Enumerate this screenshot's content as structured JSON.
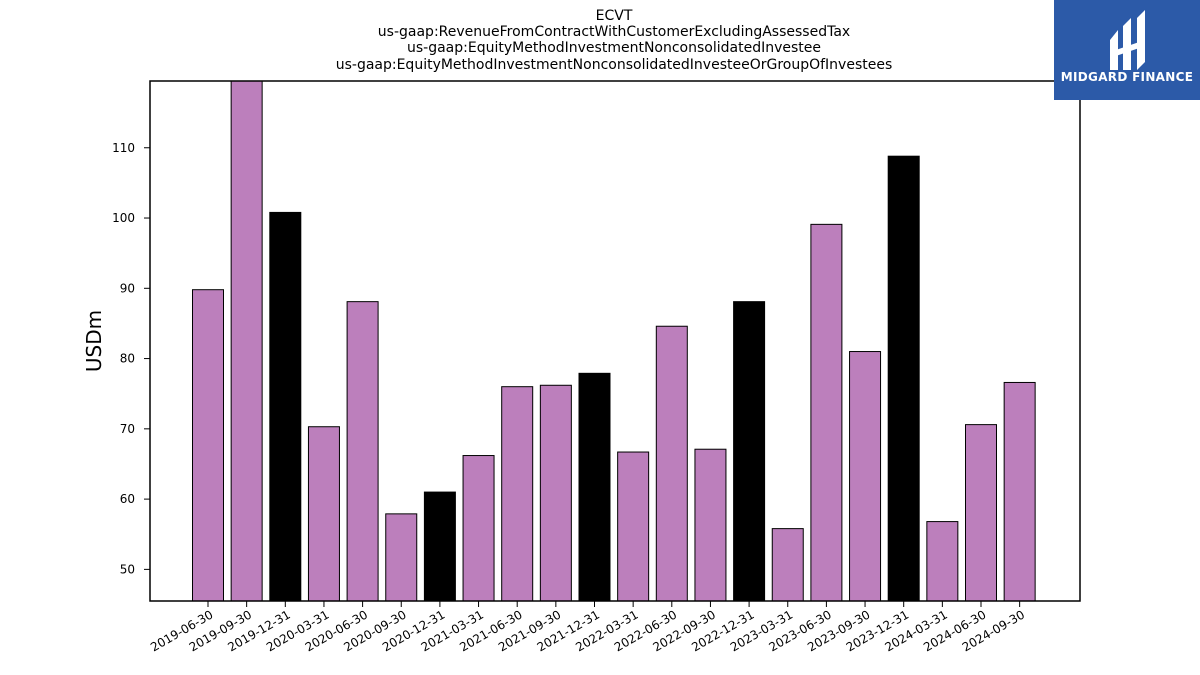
{
  "chart_data": {
    "type": "bar",
    "title_lines": [
      "ECVT",
      "us-gaap:RevenueFromContractWithCustomerExcludingAssessedTax",
      "us-gaap:EquityMethodInvestmentNonconsolidatedInvestee",
      "us-gaap:EquityMethodInvestmentNonconsolidatedInvesteeOrGroupOfInvestees"
    ],
    "ylabel": "USDm",
    "xlabel": "",
    "ylim": [
      45.5,
      119.5
    ],
    "yticks": [
      50,
      60,
      70,
      80,
      90,
      100,
      110
    ],
    "grid": false,
    "categories": [
      "2019-06-30",
      "2019-09-30",
      "2019-12-31",
      "2020-03-31",
      "2020-06-30",
      "2020-09-30",
      "2020-12-31",
      "2021-03-31",
      "2021-06-30",
      "2021-09-30",
      "2021-12-31",
      "2022-03-31",
      "2022-06-30",
      "2022-09-30",
      "2022-12-31",
      "2023-03-31",
      "2023-06-30",
      "2023-09-30",
      "2023-12-31",
      "2024-03-31",
      "2024-06-30",
      "2024-09-30"
    ],
    "values": [
      89.8,
      119.5,
      100.8,
      70.3,
      88.1,
      57.9,
      61.0,
      66.2,
      76.0,
      76.2,
      77.9,
      66.7,
      84.6,
      67.1,
      88.1,
      55.8,
      99.1,
      81.0,
      108.8,
      56.8,
      70.6,
      76.6
    ],
    "bar_colors": [
      "#bc7fbc",
      "#bc7fbc",
      "#000000",
      "#bc7fbc",
      "#bc7fbc",
      "#bc7fbc",
      "#000000",
      "#bc7fbc",
      "#bc7fbc",
      "#bc7fbc",
      "#000000",
      "#bc7fbc",
      "#bc7fbc",
      "#bc7fbc",
      "#000000",
      "#bc7fbc",
      "#bc7fbc",
      "#bc7fbc",
      "#000000",
      "#bc7fbc",
      "#bc7fbc",
      "#bc7fbc"
    ]
  },
  "logo": {
    "text": "MIDGARD FINANCE",
    "background": "#2c5aa8"
  }
}
